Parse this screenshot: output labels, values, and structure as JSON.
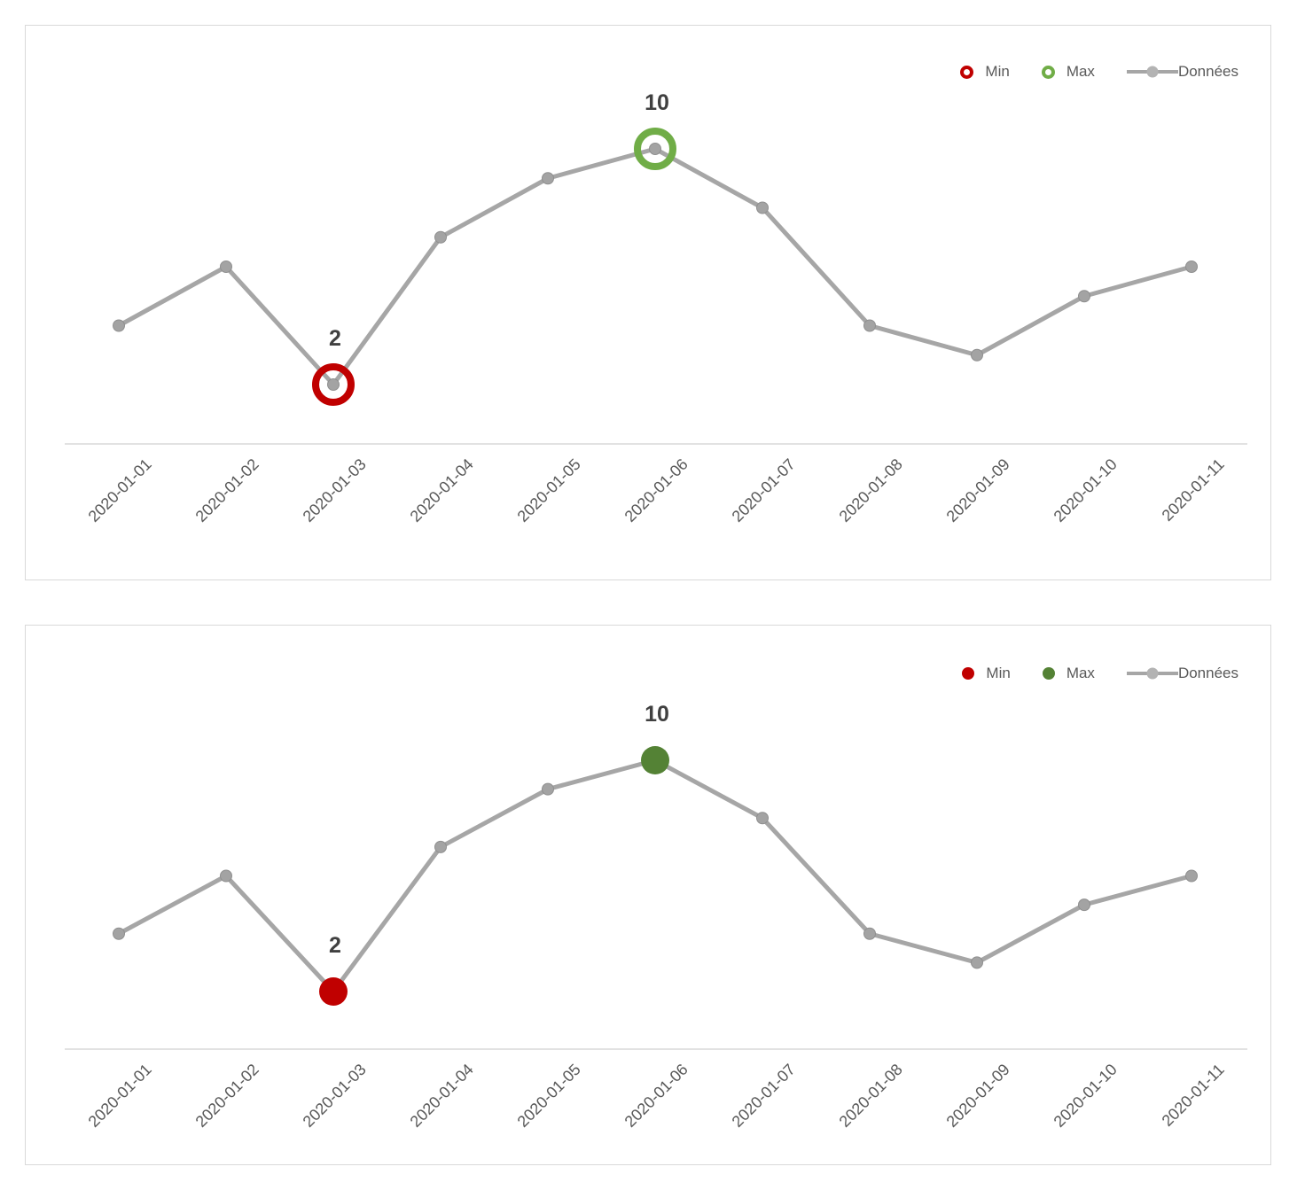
{
  "chart_data": [
    {
      "type": "line",
      "variant": "min-max-highlight-rings",
      "x": [
        "2020-01-01",
        "2020-01-02",
        "2020-01-03",
        "2020-01-04",
        "2020-01-05",
        "2020-01-06",
        "2020-01-07",
        "2020-01-08",
        "2020-01-09",
        "2020-01-10",
        "2020-01-11"
      ],
      "series": [
        {
          "name": "Données",
          "values": [
            4,
            6,
            2,
            7,
            9,
            10,
            8,
            4,
            3,
            5,
            6
          ],
          "color": "#a6a6a6"
        }
      ],
      "annotations": [
        {
          "name": "Min",
          "x": "2020-01-03",
          "value": 2,
          "label": "2",
          "marker": "ring",
          "color": "#c00000"
        },
        {
          "name": "Max",
          "x": "2020-01-06",
          "value": 10,
          "label": "10",
          "marker": "ring",
          "color": "#70ad47"
        }
      ],
      "legend": {
        "position": "top-right",
        "items": [
          {
            "label": "Min",
            "marker": "ring",
            "color": "#c00000"
          },
          {
            "label": "Max",
            "marker": "ring",
            "color": "#70ad47"
          },
          {
            "label": "Données",
            "marker": "line-dot",
            "color": "#a6a6a6"
          }
        ]
      },
      "title": "",
      "xlabel": "",
      "ylabel": "",
      "y_axis_visible": false,
      "grid": false,
      "tick_label_rotation": -45
    },
    {
      "type": "line",
      "variant": "min-max-highlight-dots",
      "x": [
        "2020-01-01",
        "2020-01-02",
        "2020-01-03",
        "2020-01-04",
        "2020-01-05",
        "2020-01-06",
        "2020-01-07",
        "2020-01-08",
        "2020-01-09",
        "2020-01-10",
        "2020-01-11"
      ],
      "series": [
        {
          "name": "Données",
          "values": [
            4,
            6,
            2,
            7,
            9,
            10,
            8,
            4,
            3,
            5,
            6
          ],
          "color": "#a6a6a6"
        }
      ],
      "annotations": [
        {
          "name": "Min",
          "x": "2020-01-03",
          "value": 2,
          "label": "2",
          "marker": "dot",
          "color": "#c00000"
        },
        {
          "name": "Max",
          "x": "2020-01-06",
          "value": 10,
          "label": "10",
          "marker": "dot",
          "color": "#548235"
        }
      ],
      "legend": {
        "position": "top-right",
        "items": [
          {
            "label": "Min",
            "marker": "dot",
            "color": "#c00000"
          },
          {
            "label": "Max",
            "marker": "dot",
            "color": "#548235"
          },
          {
            "label": "Données",
            "marker": "line-dot",
            "color": "#a6a6a6"
          }
        ]
      },
      "title": "",
      "xlabel": "",
      "ylabel": "",
      "y_axis_visible": false,
      "grid": false,
      "tick_label_rotation": -45
    }
  ],
  "styles": {
    "line_color": "#a6a6a6",
    "point_color": "#a3a3a3",
    "point_edge_color": "#8f8f8f",
    "axis_line_color": "#d9d9d9",
    "tick_text_color": "#595959",
    "annotation_text_color": "#404040",
    "legend_text_color": "#595959",
    "panel_border_color": "#d9d9d9",
    "background": "#ffffff"
  }
}
